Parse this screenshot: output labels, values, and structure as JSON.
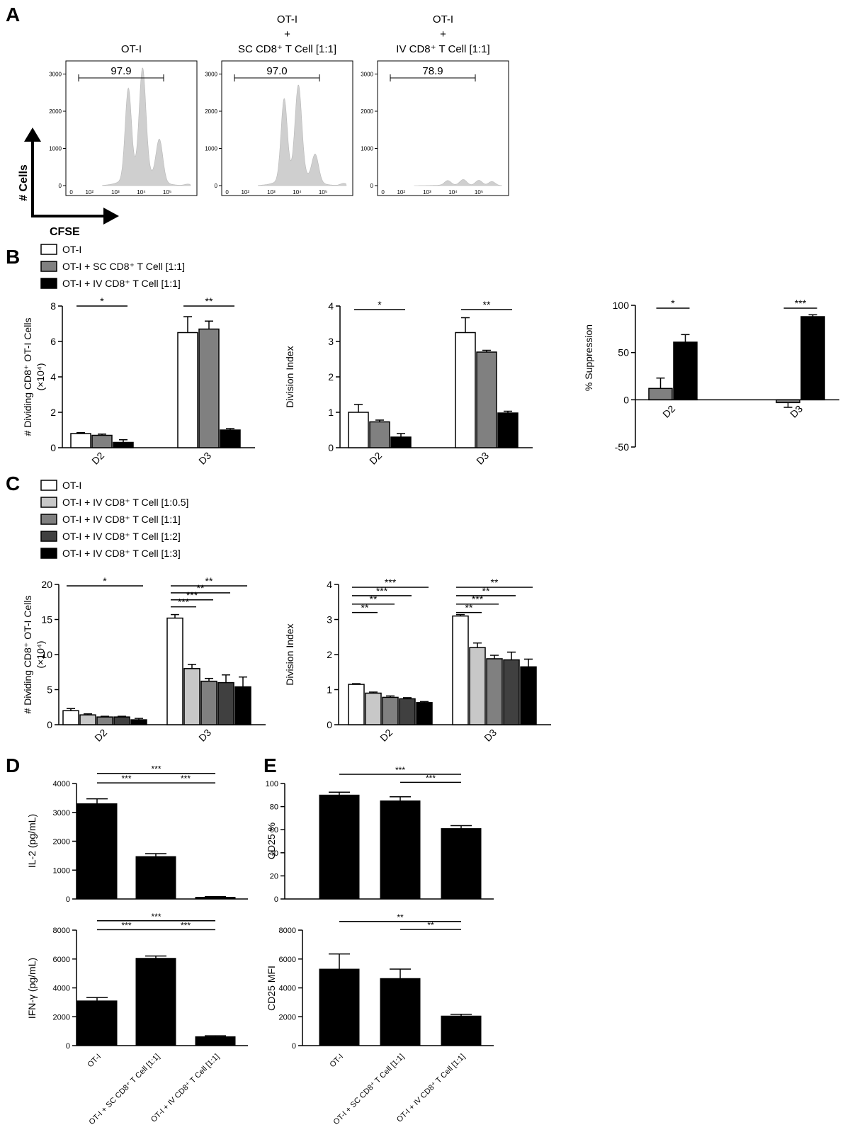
{
  "panel_letters": [
    "A",
    "B",
    "C",
    "D",
    "E"
  ],
  "chart_data": [
    {
      "id": "A1",
      "type": "area",
      "title": "OT-I",
      "gate_label": "97.9",
      "x_ticks": [
        "0",
        "10²",
        "10³",
        "10⁴",
        "10⁵"
      ],
      "y_ticks": [
        0,
        1000,
        2000,
        3000
      ],
      "ylim": [
        0,
        3200
      ],
      "peaks": [
        [
          1.5,
          2400
        ],
        [
          2.05,
          2830
        ],
        [
          2.7,
          1100
        ],
        [
          3.8,
          40
        ]
      ]
    },
    {
      "id": "A2",
      "type": "area",
      "title_lines": [
        "OT-I",
        "+",
        "SC CD8⁺ T Cell [1:1]"
      ],
      "gate_label": "97.0",
      "x_ticks": [
        "0",
        "10²",
        "10³",
        "10⁴",
        "10⁵"
      ],
      "y_ticks": [
        0,
        1000,
        2000,
        3000
      ],
      "ylim": [
        0,
        3200
      ],
      "peaks": [
        [
          1.5,
          2150
        ],
        [
          2.05,
          2420
        ],
        [
          2.7,
          720
        ],
        [
          3.8,
          60
        ]
      ]
    },
    {
      "id": "A3",
      "type": "area",
      "title_lines": [
        "OT-I",
        "+",
        "IV CD8⁺ T Cell [1:1]"
      ],
      "gate_label": "78.9",
      "x_ticks": [
        "0",
        "10²",
        "10³",
        "10⁴",
        "10⁵"
      ],
      "y_ticks": [
        0,
        1000,
        2000,
        3000
      ],
      "ylim": [
        0,
        3200
      ],
      "peaks": [
        [
          1.8,
          120
        ],
        [
          2.4,
          150
        ],
        [
          3.0,
          140
        ],
        [
          3.5,
          110
        ]
      ]
    },
    {
      "id": "B1",
      "type": "bar",
      "ylabel_lines": [
        "# Dividing CD8⁺ OT-I Cells",
        "(×10⁴)"
      ],
      "categories": [
        "D2",
        "D3"
      ],
      "ylim": [
        0,
        8
      ],
      "y_ticks": [
        0,
        2,
        4,
        6,
        8
      ],
      "series": [
        {
          "values": [
            0.8,
            6.5
          ],
          "errors": [
            0.05,
            0.9
          ]
        },
        {
          "values": [
            0.7,
            6.7
          ],
          "errors": [
            0.07,
            0.45
          ]
        },
        {
          "values": [
            0.3,
            1.0
          ],
          "errors": [
            0.15,
            0.08
          ]
        }
      ],
      "sig": [
        {
          "group": 0,
          "from": 0,
          "to": 2,
          "y": 8.0,
          "label": "*"
        },
        {
          "group": 1,
          "from": 0,
          "to": 2,
          "y": 8.0,
          "label": "**"
        }
      ]
    },
    {
      "id": "B2",
      "type": "bar",
      "ylabel_lines": [
        "Division Index"
      ],
      "categories": [
        "D2",
        "D3"
      ],
      "ylim": [
        0,
        4
      ],
      "y_ticks": [
        0,
        1,
        2,
        3,
        4
      ],
      "series": [
        {
          "values": [
            1.0,
            3.25
          ],
          "errors": [
            0.22,
            0.42
          ]
        },
        {
          "values": [
            0.73,
            2.7
          ],
          "errors": [
            0.05,
            0.05
          ]
        },
        {
          "values": [
            0.3,
            0.98
          ],
          "errors": [
            0.1,
            0.05
          ]
        }
      ],
      "sig": [
        {
          "group": 0,
          "from": 0,
          "to": 2,
          "y": 3.9,
          "label": "*"
        },
        {
          "group": 1,
          "from": 0,
          "to": 2,
          "y": 3.9,
          "label": "**"
        }
      ]
    },
    {
      "id": "B3",
      "type": "bar",
      "ylabel_lines": [
        "% Suppression"
      ],
      "categories": [
        "D2",
        "D3"
      ],
      "ylim": [
        -50,
        100
      ],
      "y_ticks": [
        -50,
        0,
        50,
        100
      ],
      "series": [
        {
          "values": [
            12,
            -3
          ],
          "errors": [
            11,
            5
          ]
        },
        {
          "values": [
            61,
            88
          ],
          "errors": [
            8,
            2
          ]
        }
      ],
      "sig": [
        {
          "group": 0,
          "from": 0,
          "to": 1,
          "y": 97,
          "label": "*"
        },
        {
          "group": 1,
          "from": 0,
          "to": 1,
          "y": 97,
          "label": "***"
        }
      ]
    },
    {
      "id": "C1",
      "type": "bar",
      "ylabel_lines": [
        "# Dividing CD8⁺ OT-I Cells",
        "(×10⁴)"
      ],
      "categories": [
        "D2",
        "D3"
      ],
      "ylim": [
        0,
        20
      ],
      "y_ticks": [
        0,
        5,
        10,
        15,
        20
      ],
      "series": [
        {
          "values": [
            2.0,
            15.2
          ],
          "errors": [
            0.3,
            0.5
          ]
        },
        {
          "values": [
            1.4,
            8.0
          ],
          "errors": [
            0.15,
            0.6
          ]
        },
        {
          "values": [
            1.1,
            6.2
          ],
          "errors": [
            0.1,
            0.4
          ]
        },
        {
          "values": [
            1.1,
            6.0
          ],
          "errors": [
            0.1,
            1.1
          ]
        },
        {
          "values": [
            0.7,
            5.4
          ],
          "errors": [
            0.2,
            1.4
          ]
        }
      ],
      "sig": [
        {
          "group": 0,
          "from": 0,
          "to": 4,
          "y": 19.8,
          "label": "*"
        },
        {
          "group": 1,
          "from": 0,
          "to": 4,
          "y": 19.8,
          "label": "**"
        },
        {
          "group": 1,
          "from": 0,
          "to": 3,
          "y": 18.8,
          "label": "**"
        },
        {
          "group": 1,
          "from": 0,
          "to": 2,
          "y": 17.8,
          "label": "***"
        },
        {
          "group": 1,
          "from": 0,
          "to": 1,
          "y": 16.8,
          "label": "***"
        }
      ]
    },
    {
      "id": "C2",
      "type": "bar",
      "ylabel_lines": [
        "Division Index"
      ],
      "categories": [
        "D2",
        "D3"
      ],
      "ylim": [
        0,
        4
      ],
      "y_ticks": [
        0,
        1,
        2,
        3,
        4
      ],
      "series": [
        {
          "values": [
            1.15,
            3.1
          ],
          "errors": [
            0.02,
            0.04
          ]
        },
        {
          "values": [
            0.9,
            2.2
          ],
          "errors": [
            0.03,
            0.13
          ]
        },
        {
          "values": [
            0.78,
            1.88
          ],
          "errors": [
            0.04,
            0.1
          ]
        },
        {
          "values": [
            0.74,
            1.85
          ],
          "errors": [
            0.03,
            0.22
          ]
        },
        {
          "values": [
            0.63,
            1.65
          ],
          "errors": [
            0.03,
            0.22
          ]
        }
      ],
      "sig": [
        {
          "group": 0,
          "from": 0,
          "to": 4,
          "y": 3.92,
          "label": "***"
        },
        {
          "group": 0,
          "from": 0,
          "to": 3,
          "y": 3.68,
          "label": "***"
        },
        {
          "group": 0,
          "from": 0,
          "to": 2,
          "y": 3.44,
          "label": "**"
        },
        {
          "group": 0,
          "from": 0,
          "to": 1,
          "y": 3.2,
          "label": "**"
        },
        {
          "group": 1,
          "from": 0,
          "to": 4,
          "y": 3.92,
          "label": "**"
        },
        {
          "group": 1,
          "from": 0,
          "to": 3,
          "y": 3.68,
          "label": "**"
        },
        {
          "group": 1,
          "from": 0,
          "to": 2,
          "y": 3.44,
          "label": "***"
        },
        {
          "group": 1,
          "from": 0,
          "to": 1,
          "y": 3.2,
          "label": "**"
        }
      ]
    },
    {
      "id": "D1",
      "type": "bar",
      "ylabel_lines": [
        "IL-2 (pg/mL)"
      ],
      "ylim": [
        0,
        4000
      ],
      "y_ticks": [
        0,
        1000,
        2000,
        3000,
        4000
      ],
      "values": [
        3300,
        1470,
        60
      ],
      "errors": [
        170,
        100,
        20
      ],
      "sig": [
        {
          "from": 0,
          "to": 2,
          "y": 4350,
          "label": "***"
        },
        {
          "from": 0,
          "to": 1,
          "y": 4020,
          "label": "***"
        },
        {
          "from": 1,
          "to": 2,
          "y": 4020,
          "label": "***"
        }
      ]
    },
    {
      "id": "D2",
      "type": "bar",
      "ylabel_lines": [
        "IFN-γ (pg/mL)"
      ],
      "ylim": [
        0,
        8000
      ],
      "y_ticks": [
        0,
        2000,
        4000,
        6000,
        8000
      ],
      "categories": [
        "OT-I",
        "OT-I + SC CD8⁺ T Cell [1:1]",
        "OT-I + IV CD8⁺ T Cell [1:1]"
      ],
      "values": [
        3100,
        6050,
        620
      ],
      "errors": [
        230,
        160,
        60
      ],
      "sig": [
        {
          "from": 0,
          "to": 2,
          "y": 8650,
          "label": "***"
        },
        {
          "from": 0,
          "to": 1,
          "y": 8030,
          "label": "***"
        },
        {
          "from": 1,
          "to": 2,
          "y": 8030,
          "label": "***"
        }
      ]
    },
    {
      "id": "E1",
      "type": "bar",
      "ylabel_lines": [
        "CD25 %"
      ],
      "ylim": [
        0,
        100
      ],
      "y_ticks": [
        0,
        20,
        40,
        60,
        80,
        100
      ],
      "values": [
        90,
        85,
        61
      ],
      "errors": [
        2.5,
        3.5,
        2.5
      ],
      "sig": [
        {
          "from": 0,
          "to": 2,
          "y": 108,
          "label": "***"
        },
        {
          "from": 1,
          "to": 2,
          "y": 101,
          "label": "***"
        }
      ]
    },
    {
      "id": "E2",
      "type": "bar",
      "ylabel_lines": [
        "CD25 MFI"
      ],
      "ylim": [
        0,
        8000
      ],
      "y_ticks": [
        0,
        2000,
        4000,
        6000,
        8000
      ],
      "categories": [
        "OT-I",
        "OT-I + SC CD8⁺ T Cell [1:1]",
        "OT-I + IV CD8⁺ T Cell [1:1]"
      ],
      "values": [
        5300,
        4650,
        2050
      ],
      "errors": [
        1050,
        650,
        120
      ],
      "sig": [
        {
          "from": 0,
          "to": 2,
          "y": 8600,
          "label": "**"
        },
        {
          "from": 1,
          "to": 2,
          "y": 8050,
          "label": "**"
        }
      ]
    }
  ],
  "legend_b": [
    "OT-I",
    "OT-I + SC CD8⁺ T Cell [1:1]",
    "OT-I + IV CD8⁺ T Cell [1:1]"
  ],
  "legend_c": [
    "OT-I",
    "OT-I + IV CD8⁺ T Cell [1:0.5]",
    "OT-I + IV CD8⁺ T Cell [1:1]",
    "OT-I + IV CD8⁺ T Cell [1:2]",
    "OT-I + IV CD8⁺ T Cell [1:3]"
  ],
  "axis_cells": "# Cells",
  "axis_cfse": "CFSE",
  "colors": {
    "white": "#ffffff",
    "gray": "#808080",
    "black": "#000000",
    "light": "#c8c8c8",
    "dark": "#404040",
    "hist_fill": "#cfcfcf"
  }
}
